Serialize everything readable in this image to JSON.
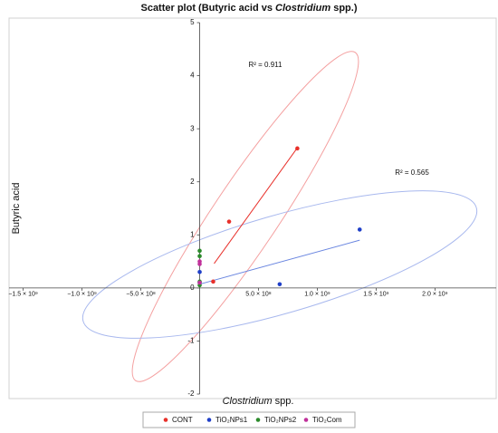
{
  "chart_data": {
    "type": "scatter",
    "title_parts": [
      "Scatter plot (Butyric acid vs ",
      "Clostridium",
      " spp.)"
    ],
    "x_label_parts": [
      "Clostridium",
      " spp."
    ],
    "y_label": "Butyric acid",
    "xlim": [
      -1620000000,
      2520000000
    ],
    "ylim": [
      -2,
      5
    ],
    "xticks": [
      {
        "value": -1500000000,
        "label": "−1.5 × 10⁹"
      },
      {
        "value": -1000000000,
        "label": "−1.0 × 10⁹"
      },
      {
        "value": -500000000,
        "label": "−5.0 × 10⁸"
      },
      {
        "value": 500000000,
        "label": "5.0 × 10⁸"
      },
      {
        "value": 1000000000,
        "label": "1.0 × 10⁹"
      },
      {
        "value": 1500000000,
        "label": "1.5 × 10⁹"
      },
      {
        "value": 2000000000,
        "label": "2.0 × 10⁹"
      }
    ],
    "yticks": [
      -2,
      -1,
      0,
      1,
      2,
      3,
      4,
      5
    ],
    "legend": "bottom",
    "series": [
      {
        "name": "CONT",
        "color": "#e8302a",
        "x": [
          115000000,
          250000000,
          830000000
        ],
        "values": [
          0.12,
          1.25,
          2.63
        ]
      },
      {
        "name": "TiO₂NPs1",
        "color": "#1f3fc8",
        "x": [
          0,
          680000000,
          1360000000,
          0
        ],
        "values": [
          0.3,
          0.07,
          1.1,
          0.1
        ]
      },
      {
        "name": "TiO₂NPs2",
        "color": "#2b8a2b",
        "x": [
          0,
          0,
          0,
          0
        ],
        "values": [
          0.7,
          0.6,
          0.12,
          0.05
        ]
      },
      {
        "name": "TiO₂Com",
        "color": "#c0309a",
        "x": [
          0,
          0,
          0
        ],
        "values": [
          0.5,
          0.45,
          0.1
        ]
      }
    ],
    "trendlines": [
      {
        "color": "#e8302a",
        "x": [
          123000000,
          830000000
        ],
        "values": [
          0.46,
          2.64
        ]
      },
      {
        "color": "#6a86e0",
        "x": [
          15000000,
          1360000000
        ],
        "values": [
          0.08,
          0.9
        ]
      }
    ],
    "annotations": [
      "R² = 0.911",
      "R² = 0.565"
    ]
  }
}
